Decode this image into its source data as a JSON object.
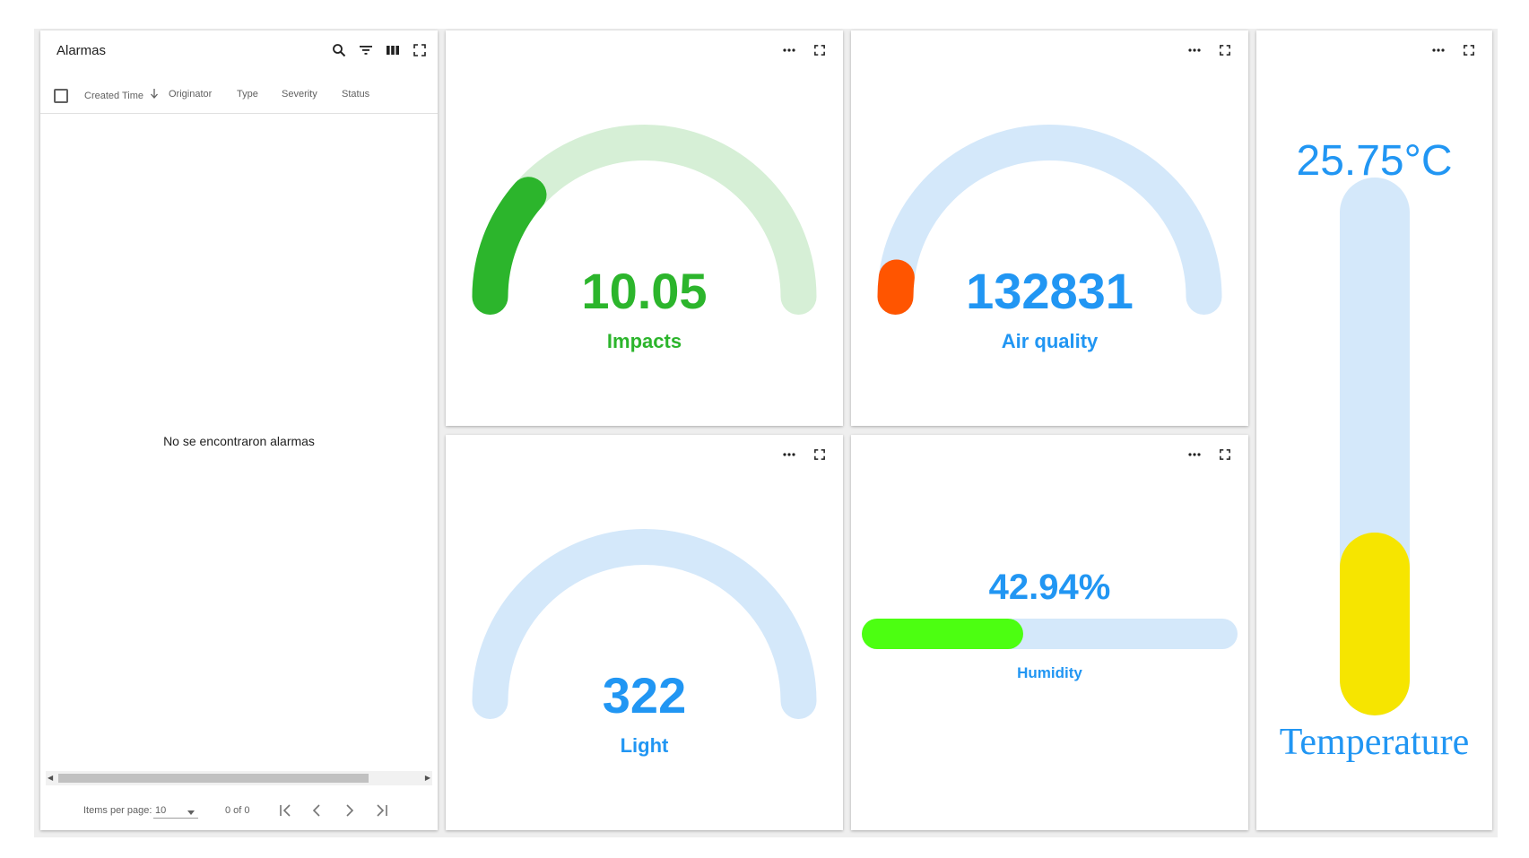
{
  "alarms": {
    "title": "Alarmas",
    "columns": [
      "Created Time",
      "Originator",
      "Type",
      "Severity",
      "Status"
    ],
    "empty_message": "No se encontraron alarmas",
    "items_per_page_label": "Items per page:",
    "items_per_page_value": "10",
    "range_label": "0 of 0"
  },
  "widgets": {
    "impacts": {
      "value": "10.05",
      "label": "Impacts",
      "fraction": 0.23,
      "color": "#2cb52c",
      "track": "#d6efd6"
    },
    "air_quality": {
      "value": "132831",
      "label": "Air quality",
      "fraction": 0.04,
      "color": "#ff5500",
      "track": "#d4e8fa"
    },
    "light": {
      "value": "322",
      "label": "Light",
      "fraction": 0,
      "color": "#2196f3",
      "track": "#d4e8fa"
    },
    "humidity": {
      "value": "42.94%",
      "label": "Humidity",
      "fraction": 0.4294,
      "color": "#4cff11",
      "track": "#d4e8fa"
    },
    "temperature": {
      "value": "25.75°C",
      "label": "Temperature",
      "fraction": 0.34,
      "color": "#f6e500",
      "track": "#d4e8fa"
    }
  },
  "colors": {
    "value_blue": "#2196f3",
    "value_green": "#2cb52c"
  },
  "icons": [
    "search-icon",
    "filter-icon",
    "columns-icon",
    "fullscreen-icon",
    "more-icon"
  ]
}
